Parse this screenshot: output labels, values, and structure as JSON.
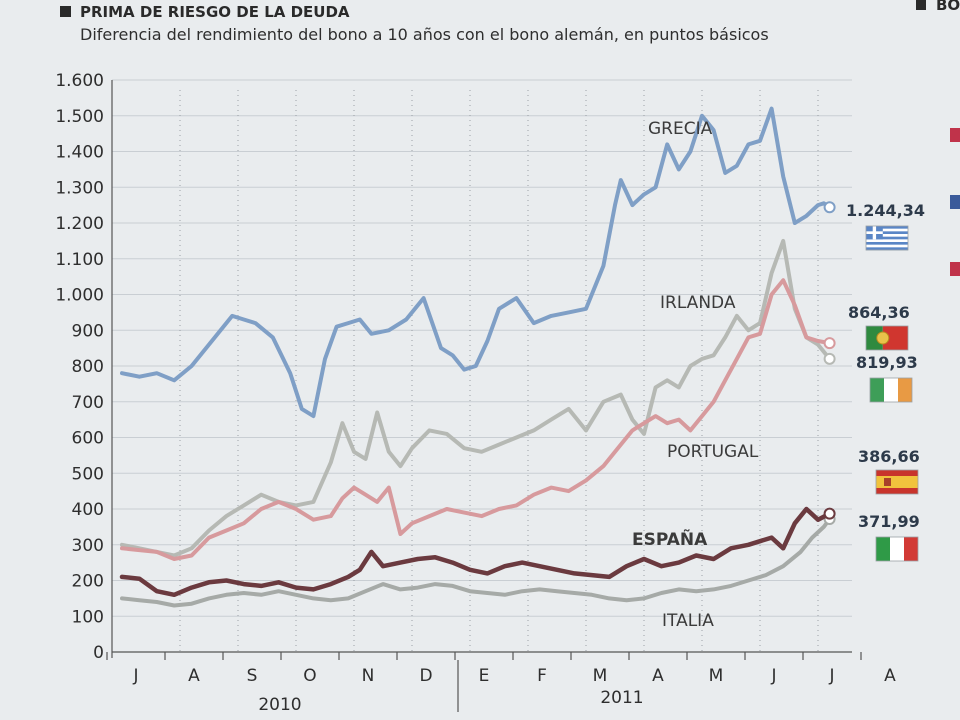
{
  "header": {
    "title": "PRIMA DE RIESGO DE LA DEUDA",
    "subtitle": "Diferencia del rendimiento del bono a 10 años con el bono alemán, en puntos básicos",
    "side_title_fragment": "BO"
  },
  "chart_data": {
    "type": "line",
    "title": "PRIMA DE RIESGO DE LA DEUDA",
    "subtitle": "Diferencia del rendimiento del bono a 10 años con el bono alemán, en puntos básicos",
    "ylim": [
      0,
      1600
    ],
    "yticks": [
      0,
      100,
      200,
      300,
      400,
      500,
      600,
      700,
      800,
      900,
      1000,
      1100,
      1200,
      1300,
      1400,
      1500,
      1600
    ],
    "ytick_labels": [
      "0",
      "100",
      "200",
      "300",
      "400",
      "500",
      "600",
      "700",
      "800",
      "900",
      "1.000",
      "1.100",
      "1.200",
      "1.300",
      "1.400",
      "1.500",
      "1.600"
    ],
    "x_months": [
      "J",
      "A",
      "S",
      "O",
      "N",
      "D",
      "E",
      "F",
      "M",
      "A",
      "M",
      "J",
      "J",
      "A"
    ],
    "x_years": [
      "2010",
      "2011"
    ],
    "grid": true,
    "series": [
      {
        "name": "GRECIA",
        "color": "#7f9fc6",
        "end_value": "1.244,34",
        "flag": "greece-flag-icon",
        "x": [
          0,
          0.3,
          0.6,
          0.9,
          1.2,
          1.6,
          1.9,
          2.1,
          2.3,
          2.6,
          2.9,
          3.1,
          3.3,
          3.5,
          3.7,
          3.9,
          4.1,
          4.3,
          4.6,
          4.9,
          5.2,
          5.5,
          5.7,
          5.9,
          6.1,
          6.3,
          6.5,
          6.8,
          7.1,
          7.4,
          7.7,
          8.0,
          8.3,
          8.5,
          8.6,
          8.8,
          9.0,
          9.2,
          9.4,
          9.6,
          9.8,
          10.0,
          10.2,
          10.4,
          10.6,
          10.8,
          11.0,
          11.2,
          11.4,
          11.6,
          11.8,
          12.0,
          12.1,
          12.2
        ],
        "values": [
          780,
          770,
          780,
          760,
          800,
          880,
          940,
          930,
          920,
          880,
          780,
          680,
          660,
          820,
          910,
          920,
          930,
          890,
          900,
          930,
          990,
          850,
          830,
          790,
          800,
          870,
          960,
          990,
          920,
          940,
          950,
          960,
          1080,
          1250,
          1320,
          1250,
          1280,
          1300,
          1420,
          1350,
          1400,
          1500,
          1460,
          1340,
          1360,
          1420,
          1430,
          1520,
          1330,
          1200,
          1220,
          1250,
          1255,
          1244
        ]
      },
      {
        "name": "IRLANDA",
        "color": "#b6b9b4",
        "end_value": "819,93",
        "flag": "ireland-flag-icon",
        "x": [
          0,
          0.3,
          0.6,
          0.9,
          1.2,
          1.5,
          1.8,
          2.1,
          2.4,
          2.7,
          3.0,
          3.3,
          3.6,
          3.8,
          4.0,
          4.2,
          4.4,
          4.6,
          4.8,
          5.0,
          5.3,
          5.6,
          5.9,
          6.2,
          6.5,
          6.8,
          7.1,
          7.4,
          7.7,
          8.0,
          8.3,
          8.6,
          8.8,
          9.0,
          9.2,
          9.4,
          9.6,
          9.8,
          10.0,
          10.2,
          10.4,
          10.6,
          10.8,
          11.0,
          11.2,
          11.4,
          11.6,
          11.8,
          12.0,
          12.2
        ],
        "values": [
          300,
          290,
          280,
          270,
          290,
          340,
          380,
          410,
          440,
          420,
          410,
          420,
          530,
          640,
          560,
          540,
          670,
          560,
          520,
          570,
          620,
          610,
          570,
          560,
          580,
          600,
          620,
          650,
          680,
          620,
          700,
          720,
          650,
          610,
          740,
          760,
          740,
          800,
          820,
          830,
          880,
          940,
          900,
          920,
          1060,
          1150,
          960,
          880,
          860,
          820
        ]
      },
      {
        "name": "PORTUGAL",
        "color": "#d79a9d",
        "end_value": "864,36",
        "flag": "portugal-flag-icon",
        "x": [
          0,
          0.3,
          0.6,
          0.9,
          1.2,
          1.5,
          1.8,
          2.1,
          2.4,
          2.7,
          3.0,
          3.3,
          3.6,
          3.8,
          4.0,
          4.2,
          4.4,
          4.6,
          4.8,
          5.0,
          5.3,
          5.6,
          5.9,
          6.2,
          6.5,
          6.8,
          7.1,
          7.4,
          7.7,
          8.0,
          8.3,
          8.6,
          8.8,
          9.0,
          9.2,
          9.4,
          9.6,
          9.8,
          10.0,
          10.2,
          10.4,
          10.6,
          10.8,
          11.0,
          11.2,
          11.4,
          11.6,
          11.8,
          12.0,
          12.2
        ],
        "values": [
          290,
          285,
          280,
          260,
          270,
          320,
          340,
          360,
          400,
          420,
          400,
          370,
          380,
          430,
          460,
          440,
          420,
          460,
          330,
          360,
          380,
          400,
          390,
          380,
          400,
          410,
          440,
          460,
          450,
          480,
          520,
          580,
          620,
          640,
          660,
          640,
          650,
          620,
          660,
          700,
          760,
          820,
          880,
          890,
          1000,
          1040,
          970,
          880,
          870,
          864
        ]
      },
      {
        "name": "ESPAÑA",
        "color": "#6b3a3f",
        "end_value": "386,66",
        "flag": "spain-flag-icon",
        "x": [
          0,
          0.3,
          0.6,
          0.9,
          1.2,
          1.5,
          1.8,
          2.1,
          2.4,
          2.7,
          3.0,
          3.3,
          3.6,
          3.9,
          4.1,
          4.3,
          4.5,
          4.8,
          5.1,
          5.4,
          5.7,
          6.0,
          6.3,
          6.6,
          6.9,
          7.2,
          7.5,
          7.8,
          8.1,
          8.4,
          8.7,
          9.0,
          9.3,
          9.6,
          9.9,
          10.2,
          10.5,
          10.8,
          11.0,
          11.2,
          11.4,
          11.6,
          11.8,
          12.0,
          12.2
        ],
        "values": [
          210,
          205,
          170,
          160,
          180,
          195,
          200,
          190,
          185,
          195,
          180,
          175,
          190,
          210,
          230,
          280,
          240,
          250,
          260,
          265,
          250,
          230,
          220,
          240,
          250,
          240,
          230,
          220,
          215,
          210,
          240,
          260,
          240,
          250,
          270,
          260,
          290,
          300,
          310,
          320,
          290,
          360,
          400,
          370,
          387
        ]
      },
      {
        "name": "ITALIA",
        "color": "#a6aaa7",
        "end_value": "371,99",
        "flag": "italy-flag-icon",
        "x": [
          0,
          0.3,
          0.6,
          0.9,
          1.2,
          1.5,
          1.8,
          2.1,
          2.4,
          2.7,
          3.0,
          3.3,
          3.6,
          3.9,
          4.2,
          4.5,
          4.8,
          5.1,
          5.4,
          5.7,
          6.0,
          6.3,
          6.6,
          6.9,
          7.2,
          7.5,
          7.8,
          8.1,
          8.4,
          8.7,
          9.0,
          9.3,
          9.6,
          9.9,
          10.2,
          10.5,
          10.8,
          11.1,
          11.4,
          11.7,
          11.9,
          12.1,
          12.2
        ],
        "values": [
          150,
          145,
          140,
          130,
          135,
          150,
          160,
          165,
          160,
          170,
          160,
          150,
          145,
          150,
          170,
          190,
          175,
          180,
          190,
          185,
          170,
          165,
          160,
          170,
          175,
          170,
          165,
          160,
          150,
          145,
          150,
          165,
          175,
          170,
          175,
          185,
          200,
          215,
          240,
          280,
          320,
          350,
          372
        ]
      }
    ]
  }
}
